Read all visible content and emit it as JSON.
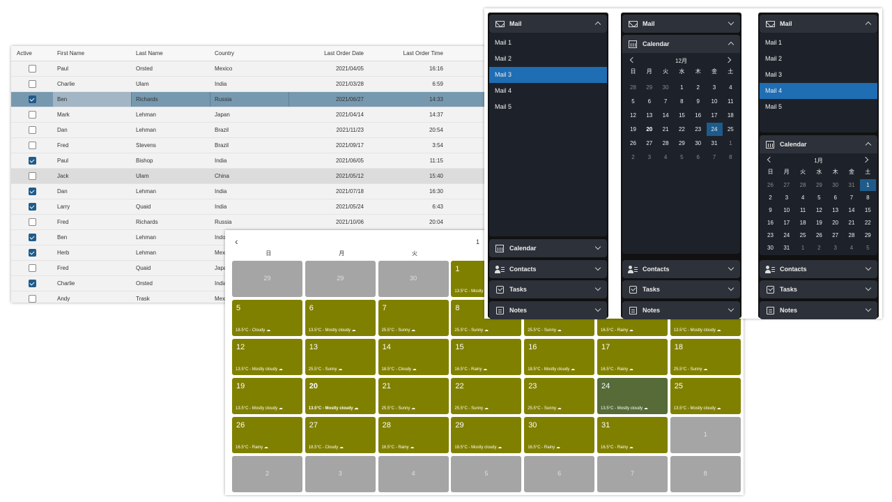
{
  "grid": {
    "headers": [
      "Active",
      "First Name",
      "Last Name",
      "Country",
      "Last Order Date",
      "Last Order Time"
    ],
    "rows": [
      {
        "active": false,
        "first": "Paul",
        "last": "Orsted",
        "country": "Mexico",
        "date": "2021/04/05",
        "time": "16:16"
      },
      {
        "active": false,
        "first": "Charlie",
        "last": "Ulam",
        "country": "India",
        "date": "2021/03/28",
        "time": "6:59"
      },
      {
        "active": true,
        "first": "Ben",
        "last": "Richards",
        "country": "Russia",
        "date": "2021/06/27",
        "time": "14:33",
        "state": "selected"
      },
      {
        "active": false,
        "first": "Mark",
        "last": "Lehman",
        "country": "Japan",
        "date": "2021/04/14",
        "time": "14:37"
      },
      {
        "active": false,
        "first": "Dan",
        "last": "Lehman",
        "country": "Brazil",
        "date": "2021/11/23",
        "time": "20:54"
      },
      {
        "active": false,
        "first": "Fred",
        "last": "Stevens",
        "country": "Brazil",
        "date": "2021/09/17",
        "time": "3:54"
      },
      {
        "active": true,
        "first": "Paul",
        "last": "Bishop",
        "country": "India",
        "date": "2021/06/05",
        "time": "11:15"
      },
      {
        "active": false,
        "first": "Jack",
        "last": "Ulam",
        "country": "China",
        "date": "2021/05/12",
        "time": "15:40",
        "state": "hover"
      },
      {
        "active": true,
        "first": "Dan",
        "last": "Lehman",
        "country": "India",
        "date": "2021/07/18",
        "time": "16:30"
      },
      {
        "active": true,
        "first": "Larry",
        "last": "Quaid",
        "country": "India",
        "date": "2021/05/24",
        "time": "6:43"
      },
      {
        "active": false,
        "first": "Fred",
        "last": "Richards",
        "country": "Russia",
        "date": "2021/10/06",
        "time": "20:04"
      },
      {
        "active": true,
        "first": "Ben",
        "last": "Lehman",
        "country": "Indo",
        "date": "",
        "time": ""
      },
      {
        "active": true,
        "first": "Herb",
        "last": "Lehman",
        "country": "Mexi",
        "date": "",
        "time": ""
      },
      {
        "active": false,
        "first": "Fred",
        "last": "Quaid",
        "country": "Japa",
        "date": "",
        "time": ""
      },
      {
        "active": true,
        "first": "Charlie",
        "last": "Orsted",
        "country": "India",
        "date": "",
        "time": ""
      },
      {
        "active": false,
        "first": "Andy",
        "last": "Trask",
        "country": "Mexi",
        "date": "",
        "time": ""
      }
    ]
  },
  "big_calendar": {
    "prev_icon": "chevron-left-icon",
    "month_label": "1",
    "dows": [
      "日",
      "月",
      "火"
    ],
    "colors": {
      "day": "#808000",
      "today": "#566b37",
      "other": "#a5a5a5"
    },
    "weeks": [
      [
        {
          "n": "29",
          "o": true
        },
        {
          "n": "29",
          "o": true
        },
        {
          "n": "30",
          "o": true
        },
        {
          "n": "1",
          "w": "13.5°C - Mostly"
        },
        {
          "n": "",
          "h": true
        },
        {
          "n": "",
          "h": true
        },
        {
          "n": "",
          "h": true
        }
      ],
      [
        {
          "n": "5",
          "w": "18.5°C - Cloudy ☁"
        },
        {
          "n": "6",
          "w": "13.5°C - Mostly cloudy ☁"
        },
        {
          "n": "7",
          "w": "25.5°C - Sunny ☁"
        },
        {
          "n": "8",
          "w": "25.5°C - Sunny ☁"
        },
        {
          "n": "",
          "w": "25.5°C - Sunny ☁"
        },
        {
          "n": "",
          "w": "16.5°C - Rainy ☁"
        },
        {
          "n": "",
          "w": "13.5°C - Mostly cloudy ☁"
        }
      ],
      [
        {
          "n": "12",
          "w": "13.5°C - Mostly cloudy ☁"
        },
        {
          "n": "13",
          "w": "25.5°C - Sunny ☁"
        },
        {
          "n": "14",
          "w": "18.5°C - Cloudy ☁"
        },
        {
          "n": "15",
          "w": "16.5°C - Rainy ☁"
        },
        {
          "n": "16",
          "w": "18.5°C - Mostly cloudy ☁"
        },
        {
          "n": "17",
          "w": "16.5°C - Rainy ☁"
        },
        {
          "n": "18",
          "w": "25.5°C - Sunny ☁"
        }
      ],
      [
        {
          "n": "19",
          "w": "13.5°C - Mostly cloudy ☁"
        },
        {
          "n": "20",
          "w": "13.5°C - Mostly cloudy ☁",
          "b": true
        },
        {
          "n": "21",
          "w": "25.5°C - Sunny ☁"
        },
        {
          "n": "22",
          "w": "25.5°C - Sunny ☁"
        },
        {
          "n": "23",
          "w": "25.5°C - Sunny ☁"
        },
        {
          "n": "24",
          "w": "13.5°C - Mostly cloudy ☁",
          "t": true
        },
        {
          "n": "25",
          "w": "13.5°C - Mostly cloudy ☁"
        }
      ],
      [
        {
          "n": "26",
          "w": "16.5°C - Rainy ☁"
        },
        {
          "n": "27",
          "w": "18.5°C - Cloudy ☁"
        },
        {
          "n": "28",
          "w": "16.5°C - Rainy ☁"
        },
        {
          "n": "29",
          "w": "18.5°C - Mostly cloudy ☁"
        },
        {
          "n": "30",
          "w": "16.5°C - Rainy ☁"
        },
        {
          "n": "31",
          "w": "16.5°C - Rainy ☁"
        },
        {
          "n": "1",
          "o": true
        }
      ],
      [
        {
          "n": "2",
          "o": true
        },
        {
          "n": "3",
          "o": true
        },
        {
          "n": "4",
          "o": true
        },
        {
          "n": "5",
          "o": true
        },
        {
          "n": "6",
          "o": true
        },
        {
          "n": "7",
          "o": true
        },
        {
          "n": "8",
          "o": true
        }
      ]
    ]
  },
  "nav_panes": {
    "labels": {
      "mail": "Mail",
      "calendar": "Calendar",
      "contacts": "Contacts",
      "tasks": "Tasks",
      "notes": "Notes"
    },
    "icons": {
      "mail": "mail-icon",
      "calendar": "calendar-icon",
      "contacts": "contacts-icon",
      "tasks": "tasks-icon",
      "notes": "notes-icon"
    },
    "mail_items": [
      "Mail 1",
      "Mail 2",
      "Mail 3",
      "Mail 4",
      "Mail 5"
    ],
    "pane1": {
      "selected_mail": "Mail 3"
    },
    "pane2": {
      "month_title": "12月",
      "dows": [
        "日",
        "月",
        "火",
        "水",
        "木",
        "金",
        "土"
      ],
      "days": [
        [
          "28",
          "29",
          "30",
          "1",
          "2",
          "3",
          "4"
        ],
        [
          "5",
          "6",
          "7",
          "8",
          "9",
          "10",
          "11"
        ],
        [
          "12",
          "13",
          "14",
          "15",
          "16",
          "17",
          "18"
        ],
        [
          "19",
          "20",
          "21",
          "22",
          "23",
          "24",
          "25"
        ],
        [
          "26",
          "27",
          "28",
          "29",
          "30",
          "31",
          "1"
        ],
        [
          "2",
          "3",
          "4",
          "5",
          "6",
          "7",
          "8"
        ]
      ],
      "selected_day": "24",
      "bold_day": "20"
    },
    "pane3": {
      "selected_mail": "Mail 4",
      "month_title": "1月",
      "dows": [
        "日",
        "月",
        "火",
        "水",
        "木",
        "金",
        "土"
      ],
      "days": [
        [
          "26",
          "27",
          "28",
          "29",
          "30",
          "31",
          "1"
        ],
        [
          "2",
          "3",
          "4",
          "5",
          "6",
          "7",
          "8"
        ],
        [
          "9",
          "10",
          "11",
          "12",
          "13",
          "14",
          "15"
        ],
        [
          "16",
          "17",
          "18",
          "19",
          "20",
          "21",
          "22"
        ],
        [
          "23",
          "24",
          "25",
          "26",
          "27",
          "28",
          "29"
        ],
        [
          "30",
          "31",
          "1",
          "2",
          "3",
          "4",
          "5"
        ]
      ],
      "selected_day": "1"
    },
    "accent": "#1f6db3"
  }
}
